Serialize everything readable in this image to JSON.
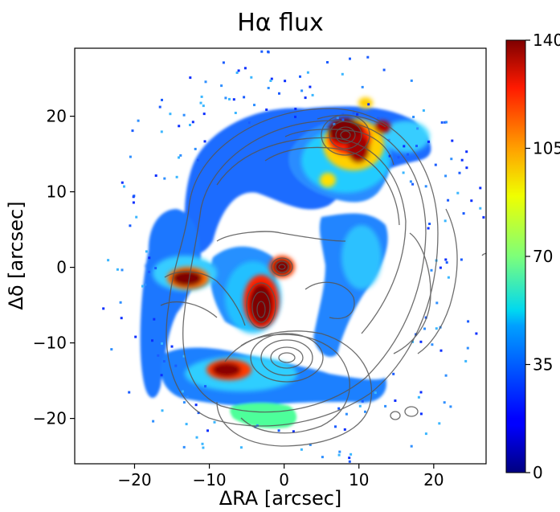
{
  "chart_data": {
    "type": "heatmap",
    "title": "Hα flux",
    "xlabel": "ΔRA [arcsec]",
    "ylabel": "Δδ [arcsec]",
    "xlim": [
      -28,
      27
    ],
    "ylim": [
      -26,
      29
    ],
    "xticks": [
      -20,
      -10,
      0,
      10,
      20
    ],
    "xtick_labels": [
      "−20",
      "−10",
      "0",
      "10",
      "20"
    ],
    "yticks": [
      -20,
      -10,
      0,
      10,
      20
    ],
    "ytick_labels": [
      "−20",
      "−10",
      "0",
      "10",
      "20"
    ],
    "colorbar": {
      "colormap": "jet",
      "range": [
        0,
        140
      ],
      "ticks": [
        0,
        35,
        70,
        105,
        140
      ],
      "tick_labels": [
        "0",
        "35",
        "70",
        "105",
        "140"
      ]
    },
    "contours": {
      "color": "#555555",
      "overlay": true
    },
    "flux_peaks": [
      {
        "x": 8,
        "y": 18.5,
        "value": 140
      },
      {
        "x": 10,
        "y": 16,
        "value": 130
      },
      {
        "x": 13,
        "y": 19,
        "value": 125
      },
      {
        "x": -13,
        "y": -1.3,
        "value": 140
      },
      {
        "x": 0,
        "y": 0,
        "value": 140
      },
      {
        "x": -3,
        "y": -5,
        "value": 140
      },
      {
        "x": -6,
        "y": -13.5,
        "value": 130
      },
      {
        "x": 10,
        "y": 23,
        "value": 110
      }
    ]
  }
}
